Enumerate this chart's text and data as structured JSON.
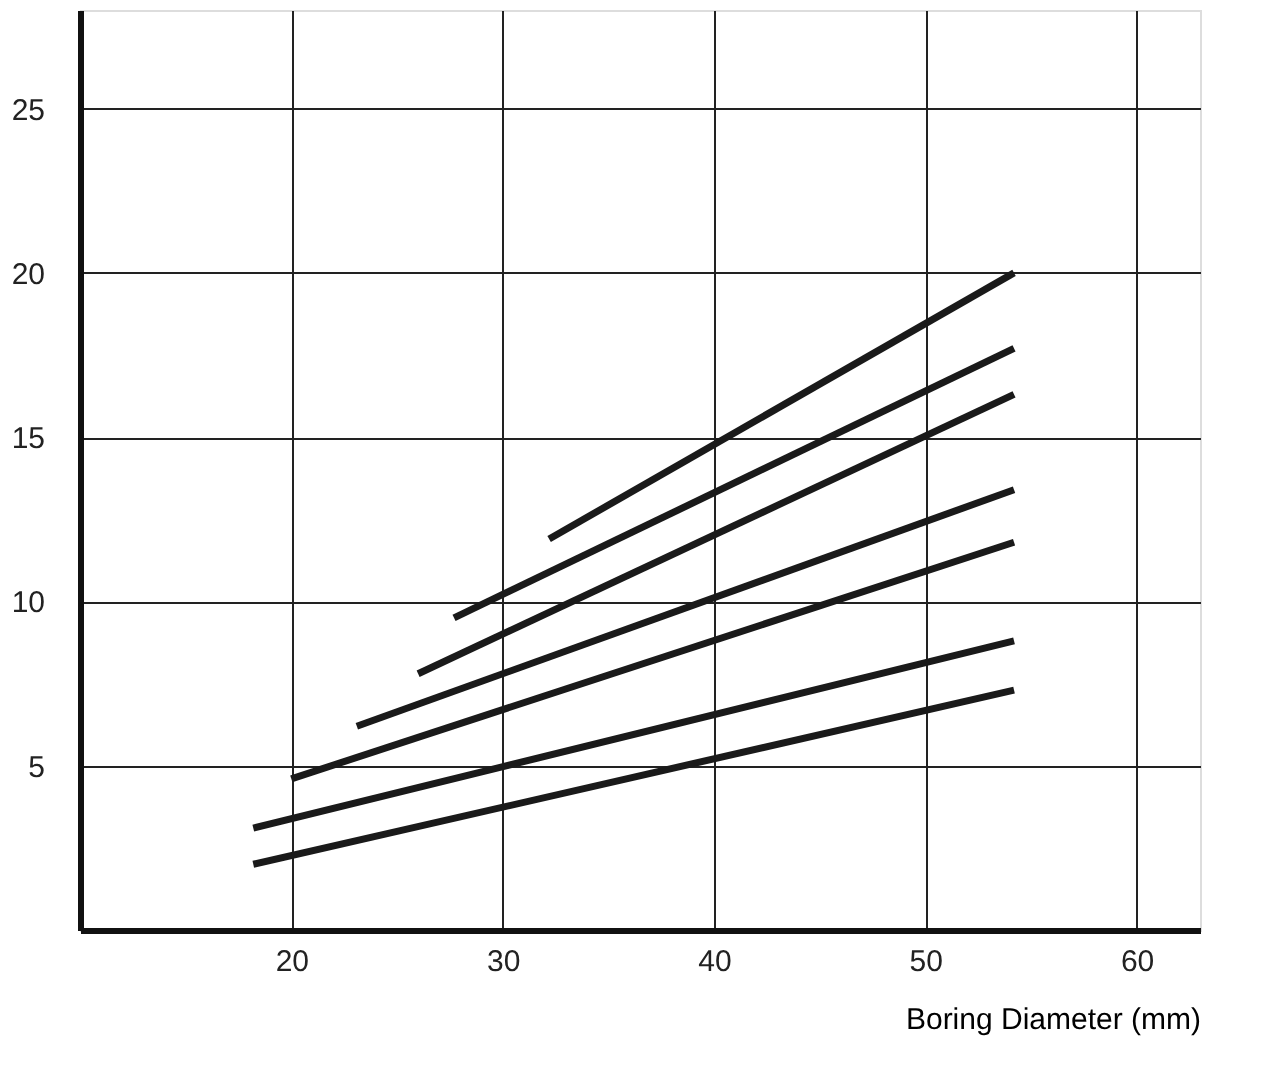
{
  "chart_data": {
    "type": "line",
    "xlabel": "Boring Diameter (mm)",
    "xlim": [
      10,
      63
    ],
    "xticks": [
      20,
      30,
      40,
      50,
      60
    ],
    "ylim": [
      0,
      28
    ],
    "yticks": [
      5,
      10,
      15,
      20,
      25
    ],
    "grid": true,
    "legend": false,
    "marker": "none",
    "line_style": "solid",
    "series": [
      {
        "color": "#1a1a1a",
        "x": [
          32.2,
          54.2
        ],
        "values": [
          11.9,
          20
        ]
      },
      {
        "color": "#1a1a1a",
        "x": [
          27.7,
          54.2
        ],
        "values": [
          9.5,
          17.7
        ]
      },
      {
        "color": "#1a1a1a",
        "x": [
          26,
          54.2
        ],
        "values": [
          7.8,
          16.3
        ]
      },
      {
        "color": "#1a1a1a",
        "x": [
          23.1,
          54.2
        ],
        "values": [
          6.2,
          13.4
        ]
      },
      {
        "color": "#1a1a1a",
        "x": [
          20,
          54.2
        ],
        "values": [
          4.6,
          11.8
        ]
      },
      {
        "color": "#1a1a1a",
        "x": [
          18.2,
          54.2
        ],
        "values": [
          3.1,
          8.8
        ]
      },
      {
        "color": "#1a1a1a",
        "x": [
          18.2,
          54.2
        ],
        "values": [
          2.0,
          7.3
        ]
      }
    ]
  }
}
